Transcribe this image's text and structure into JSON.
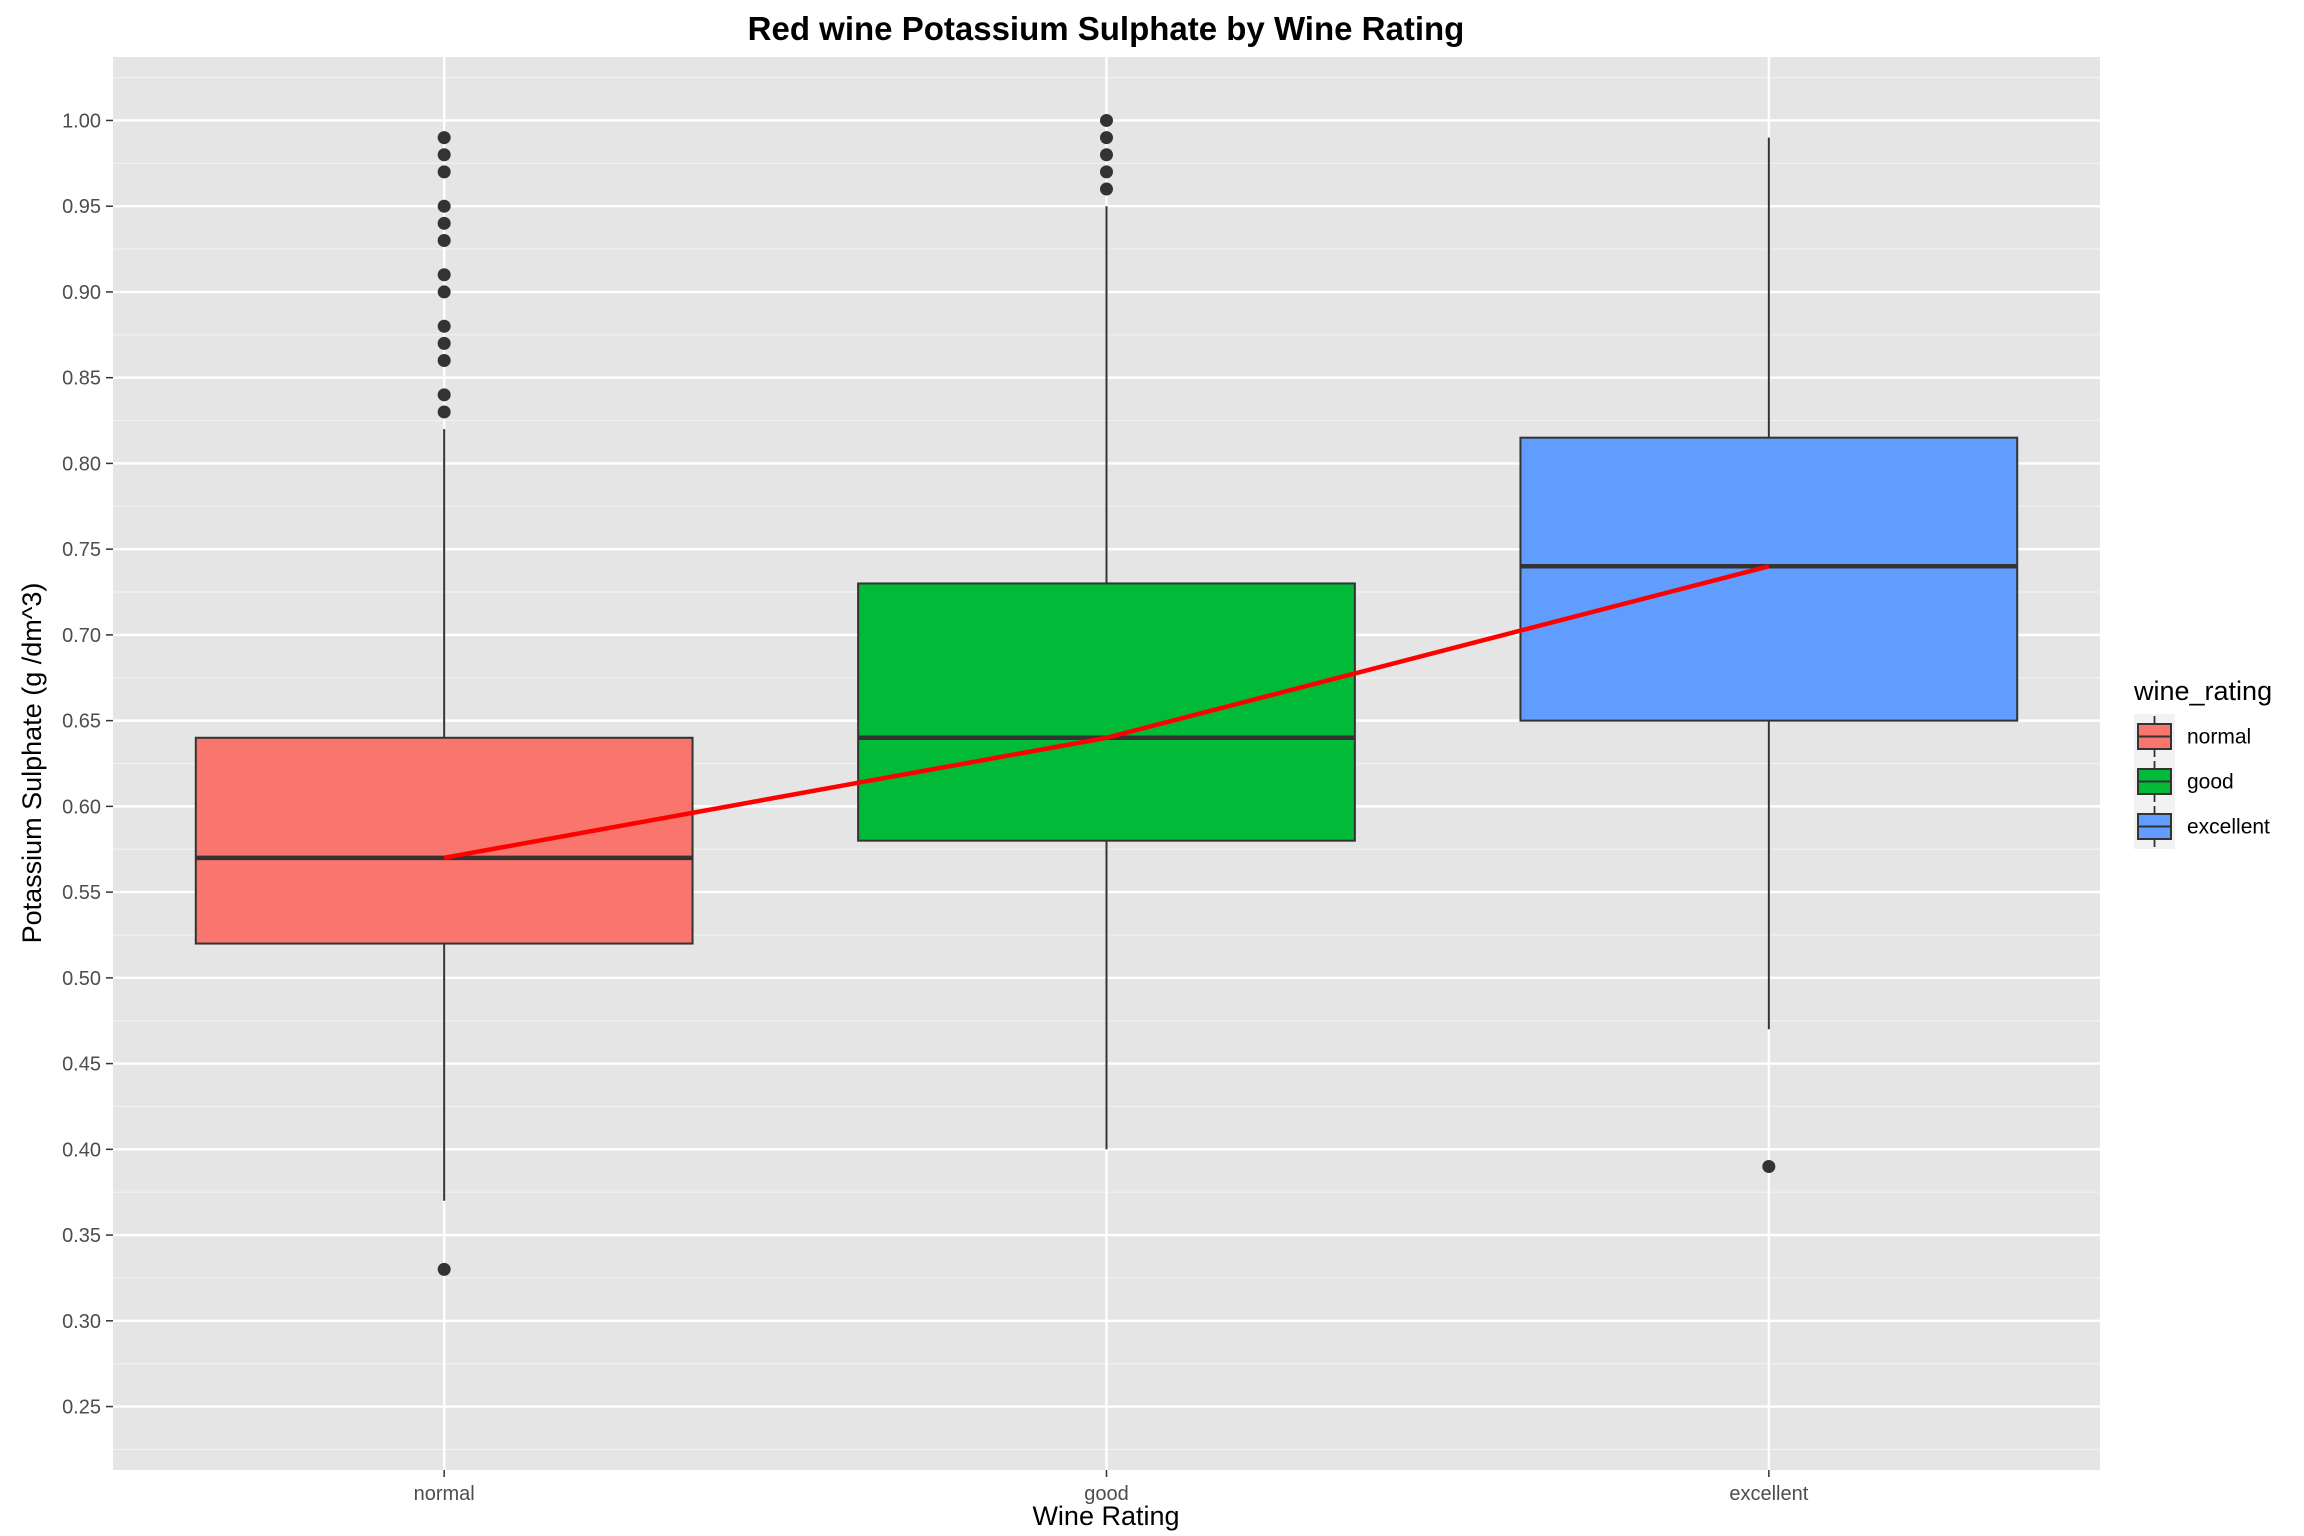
{
  "chart_data": {
    "type": "boxplot",
    "title": "Red wine Potassium Sulphate by Wine Rating",
    "xlabel": "Wine Rating",
    "ylabel": "Potassium Sulphate (g /dm^3)",
    "categories": [
      "normal",
      "good",
      "excellent"
    ],
    "ylim": [
      0.213,
      1.037
    ],
    "yticks": [
      0.25,
      0.3,
      0.35,
      0.4,
      0.45,
      0.5,
      0.55,
      0.6,
      0.65,
      0.7,
      0.75,
      0.8,
      0.85,
      0.9,
      0.95,
      1.0
    ],
    "ytick_labels": [
      "0.25",
      "0.30",
      "0.35",
      "0.40",
      "0.45",
      "0.50",
      "0.55",
      "0.60",
      "0.65",
      "0.70",
      "0.75",
      "0.80",
      "0.85",
      "0.90",
      "0.95",
      "1.00"
    ],
    "grid": true,
    "boxes": [
      {
        "category": "normal",
        "color": "#F8766D",
        "whisker_low": 0.37,
        "q1": 0.52,
        "median": 0.57,
        "q3": 0.64,
        "whisker_high": 0.82,
        "outliers": [
          0.33,
          0.83,
          0.84,
          0.86,
          0.87,
          0.88,
          0.9,
          0.91,
          0.93,
          0.94,
          0.95,
          0.97,
          0.98,
          0.99
        ]
      },
      {
        "category": "good",
        "color": "#00BA38",
        "whisker_low": 0.4,
        "q1": 0.58,
        "median": 0.64,
        "q3": 0.73,
        "whisker_high": 0.95,
        "outliers": [
          0.96,
          0.97,
          0.98,
          0.99,
          1.0
        ]
      },
      {
        "category": "excellent",
        "color": "#619CFF",
        "whisker_low": 0.47,
        "q1": 0.65,
        "median": 0.74,
        "q3": 0.815,
        "whisker_high": 0.99,
        "outliers": [
          0.39
        ]
      }
    ],
    "median_line": {
      "color": "#FF0000",
      "values": [
        0.57,
        0.64,
        0.74
      ]
    },
    "legend": {
      "title": "wine_rating",
      "position": "right",
      "items": [
        {
          "label": "normal",
          "color": "#F8766D"
        },
        {
          "label": "good",
          "color": "#00BA38"
        },
        {
          "label": "excellent",
          "color": "#619CFF"
        }
      ]
    }
  }
}
